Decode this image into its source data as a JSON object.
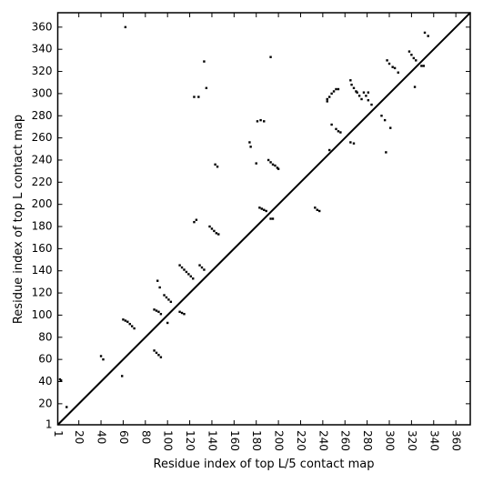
{
  "chart_data": {
    "type": "scatter",
    "xlabel": "Residue index of top L/5 contact map",
    "ylabel": "Residue index of top L contact map",
    "color": "#000000",
    "xlim": [
      1,
      373
    ],
    "ylim": [
      1,
      373
    ],
    "xticks": [
      1,
      20,
      40,
      60,
      80,
      100,
      120,
      140,
      160,
      180,
      200,
      220,
      240,
      260,
      280,
      300,
      320,
      340,
      360
    ],
    "yticks": [
      1,
      20,
      40,
      60,
      80,
      100,
      120,
      140,
      160,
      180,
      200,
      220,
      240,
      260,
      280,
      300,
      320,
      340,
      360
    ],
    "x": [
      3,
      4,
      9,
      40,
      42,
      59,
      60,
      62,
      64,
      66,
      68,
      70,
      62,
      88,
      90,
      92,
      94,
      88,
      90,
      92,
      94,
      100,
      97,
      99,
      101,
      103,
      91,
      93,
      111,
      113,
      115,
      111,
      113,
      115,
      117,
      119,
      121,
      123,
      129,
      131,
      133,
      124,
      126,
      124,
      128,
      133,
      135,
      138,
      140,
      142,
      144,
      146,
      143,
      145,
      174,
      175,
      180,
      181,
      184,
      187,
      193,
      183,
      185,
      187,
      189,
      193,
      195,
      191,
      193,
      195,
      197,
      199,
      200,
      233,
      235,
      237,
      246,
      244,
      246,
      248,
      250,
      252,
      254,
      244,
      248,
      252,
      254,
      256,
      265,
      266,
      268,
      270,
      265,
      268,
      271,
      273,
      275,
      277,
      279,
      281,
      281,
      284,
      293,
      296,
      297,
      301,
      298,
      300,
      303,
      305,
      308,
      318,
      320,
      322,
      324,
      323,
      329,
      331,
      332,
      335
    ],
    "values": [
      42,
      41,
      17,
      63,
      60,
      45,
      96,
      95,
      94,
      92,
      90,
      88,
      360,
      68,
      66,
      64,
      62,
      105,
      104,
      103,
      101,
      93,
      118,
      116,
      114,
      112,
      131,
      125,
      103,
      102,
      101,
      145,
      143,
      141,
      139,
      137,
      135,
      133,
      145,
      143,
      141,
      184,
      186,
      297,
      297,
      329,
      305,
      180,
      178,
      176,
      174,
      173,
      236,
      234,
      256,
      252,
      237,
      275,
      276,
      275,
      333,
      197,
      196,
      195,
      194,
      187,
      187,
      240,
      238,
      236,
      235,
      233,
      232,
      197,
      195,
      194,
      249,
      295,
      297,
      300,
      302,
      304,
      304,
      293,
      272,
      268,
      266,
      265,
      312,
      308,
      305,
      302,
      256,
      255,
      301,
      298,
      295,
      301,
      298,
      294,
      301,
      290,
      280,
      276,
      247,
      269,
      330,
      327,
      324,
      323,
      319,
      338,
      335,
      332,
      330,
      306,
      325,
      325,
      355,
      352
    ]
  }
}
